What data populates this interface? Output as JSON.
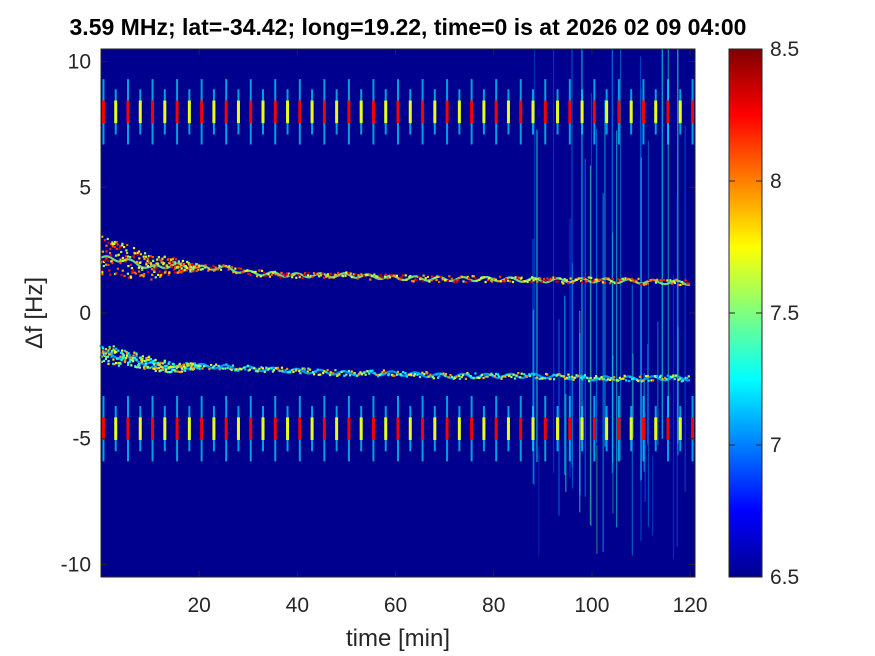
{
  "chart_data": {
    "type": "heatmap",
    "title": "3.59 MHz;  lat=-34.42; long=19.22, time=0 is at 2026 02 09 04:00",
    "xlabel": "time [min]",
    "ylabel": "Δf [Hz]",
    "xlim": [
      0,
      121
    ],
    "ylim": [
      -10.5,
      10.5
    ],
    "x_ticks": [
      20,
      40,
      60,
      80,
      100,
      120
    ],
    "y_ticks": [
      -10,
      -5,
      0,
      5,
      10
    ],
    "colorbar": {
      "colormap": "jet",
      "range": [
        6.5,
        8.5
      ],
      "ticks": [
        6.5,
        7,
        7.5,
        8,
        8.5
      ]
    },
    "background_value": 6.5,
    "pulse_period_min": 5,
    "pulse_center_hz": [
      8,
      -4.6
    ],
    "trace_upper": {
      "time_min": [
        0,
        5,
        10,
        15,
        20,
        25,
        30,
        40,
        50,
        60,
        70,
        80,
        90,
        100,
        110,
        120
      ],
      "delta_f_hz": [
        2.2,
        2.1,
        1.8,
        1.9,
        1.8,
        1.8,
        1.6,
        1.5,
        1.5,
        1.4,
        1.35,
        1.35,
        1.3,
        1.3,
        1.25,
        1.2
      ]
    },
    "trace_lower": {
      "time_min": [
        0,
        5,
        10,
        15,
        20,
        30,
        40,
        50,
        60,
        70,
        80,
        90,
        100,
        110,
        120
      ],
      "delta_f_hz": [
        -1.6,
        -1.8,
        -2.0,
        -2.2,
        -2.1,
        -2.2,
        -2.3,
        -2.4,
        -2.4,
        -2.5,
        -2.5,
        -2.5,
        -2.6,
        -2.6,
        -2.6
      ]
    }
  }
}
